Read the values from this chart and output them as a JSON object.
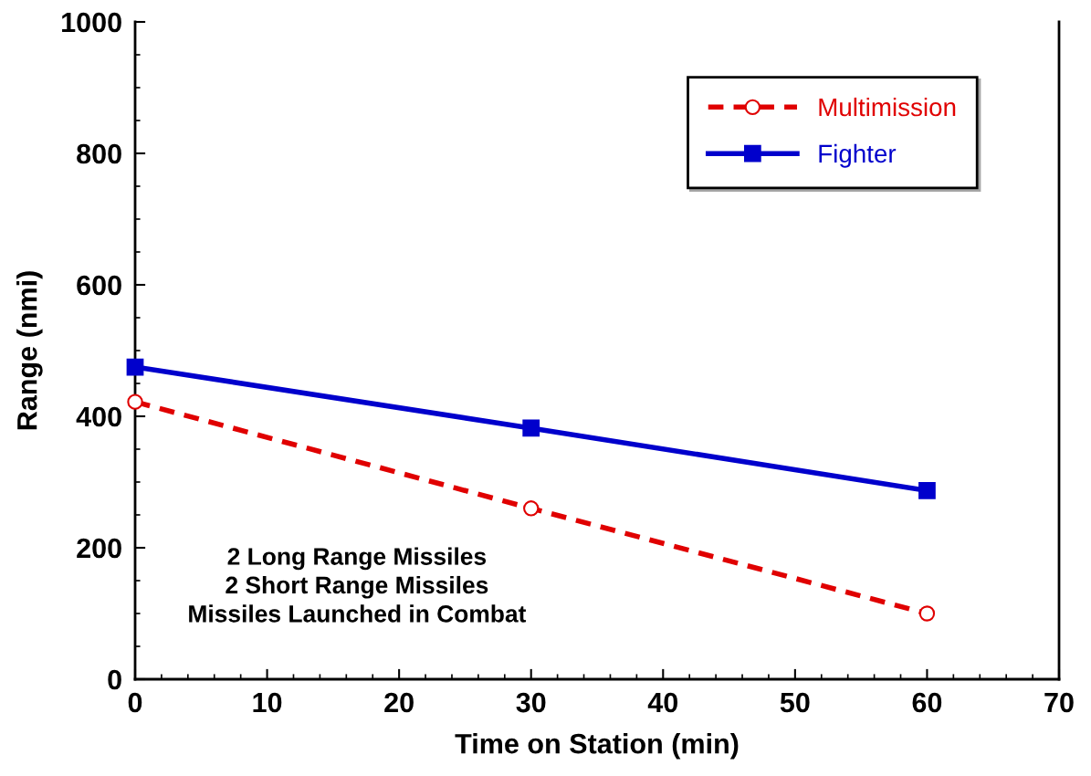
{
  "chart_data": {
    "type": "line",
    "xlabel": "Time on Station (min)",
    "ylabel": "Range (nmi)",
    "x": [
      0,
      30,
      60
    ],
    "series": [
      {
        "name": "Multimission",
        "color": "#e00000",
        "values": [
          422,
          260,
          100
        ],
        "marker": "circle",
        "line_style": "dashed"
      },
      {
        "name": "Fighter",
        "color": "#0000cc",
        "values": [
          475,
          382,
          287
        ],
        "marker": "square",
        "line_style": "solid"
      }
    ],
    "xlim": [
      0,
      70
    ],
    "xticks": [
      0,
      10,
      20,
      30,
      40,
      50,
      60,
      70
    ],
    "ylim": [
      0,
      1000
    ],
    "yticks": [
      0,
      200,
      400,
      600,
      800,
      1000
    ],
    "grid": false,
    "legend": "top right",
    "annotations": [
      "2 Long Range Missiles\n2 Short Range Missiles\nMissiles Launched in Combat"
    ]
  }
}
